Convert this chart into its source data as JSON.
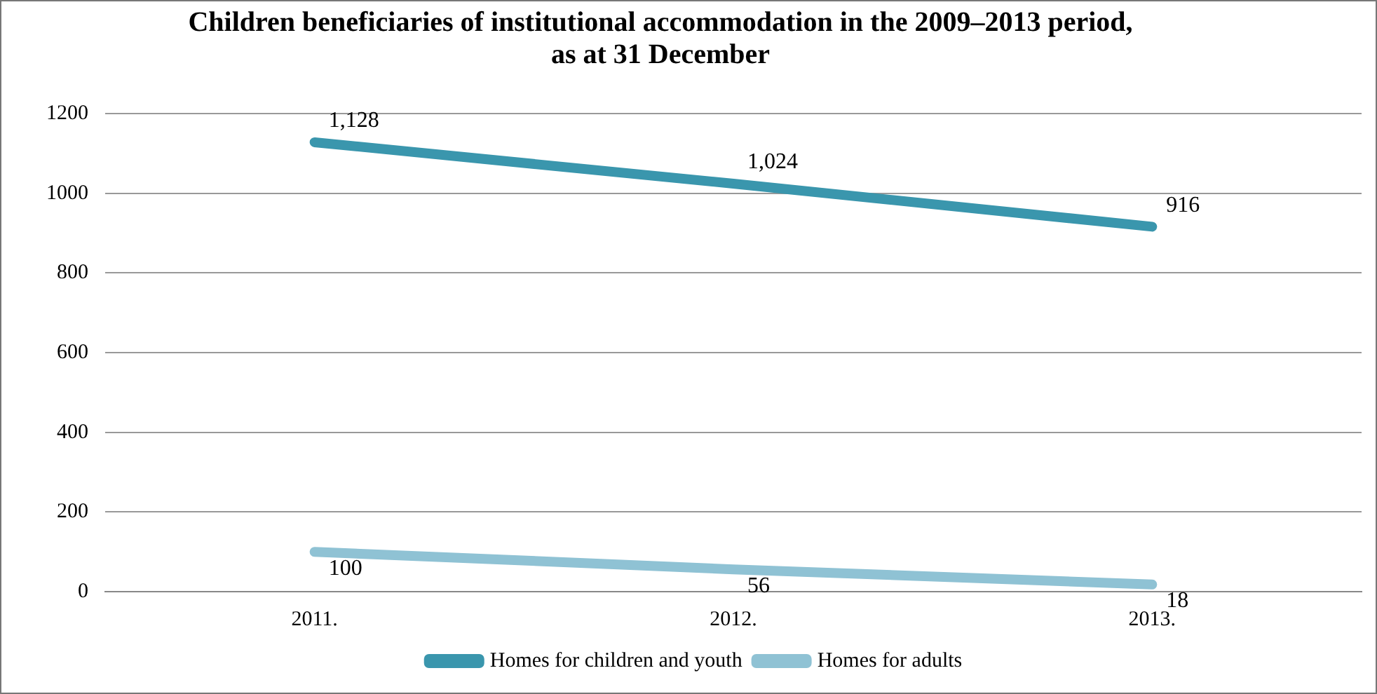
{
  "chart_data": {
    "type": "line",
    "title": "Children beneficiaries of institutional accommodation in the 2009–2013 period, as at 31 December",
    "categories": [
      "2011.",
      "2012.",
      "2013."
    ],
    "series": [
      {
        "name": "Homes for children and youth",
        "color": "#3a96ad",
        "values": [
          1128,
          1024,
          916
        ],
        "value_labels": [
          "1,128",
          "1,024",
          "916"
        ]
      },
      {
        "name": "Homes for adults",
        "color": "#8fc2d4",
        "values": [
          100,
          56,
          18
        ],
        "value_labels": [
          "100",
          "56",
          "18"
        ]
      }
    ],
    "ylim": [
      0,
      1200
    ],
    "yticks": [
      0,
      200,
      400,
      600,
      800,
      1000,
      1200
    ],
    "grid": "y",
    "legend": "bottom",
    "marker": "none",
    "line_style": "solid"
  }
}
